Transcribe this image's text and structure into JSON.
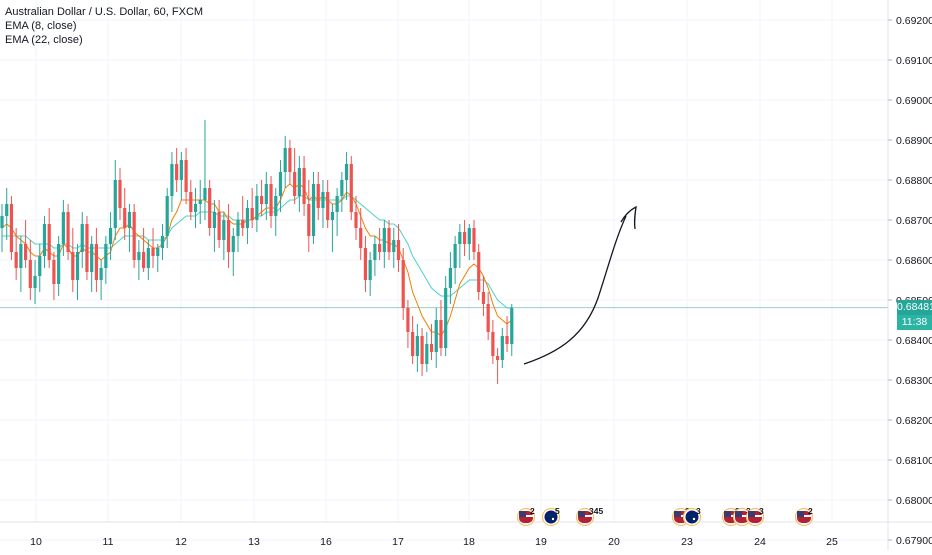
{
  "legend": {
    "symbol": "Australian Dollar / U.S. Dollar, 60, FXCM",
    "ema8": "EMA (8, close)",
    "ema22": "EMA (22, close)"
  },
  "price_badge": {
    "price": "0.68481",
    "countdown": "11:38"
  },
  "colors": {
    "up": "#26a69a",
    "down": "#ef5350",
    "ema8": "#f57c00",
    "ema22": "#4dd0c8",
    "last_line": "#26a69a",
    "grid": "#f0f3fa",
    "axis_text": "#131722"
  },
  "chart_data": {
    "type": "candlestick",
    "title": "Australian Dollar / U.S. Dollar, 60, FXCM",
    "ylim": [
      0.6792,
      0.6925
    ],
    "y_ticks": [
      "0.67900",
      "0.68000",
      "0.68100",
      "0.68200",
      "0.68300",
      "0.68400",
      "0.68500",
      "0.68600",
      "0.68700",
      "0.68800",
      "0.68900",
      "0.69000",
      "0.69100",
      "0.69200"
    ],
    "x_ticks": [
      "10",
      "11",
      "12",
      "13",
      "16",
      "17",
      "18",
      "19",
      "20",
      "23",
      "24",
      "25"
    ],
    "last_price": 0.68481,
    "series": [
      {
        "name": "EMA (8, close)",
        "type": "line"
      },
      {
        "name": "EMA (22, close)",
        "type": "line"
      }
    ],
    "candles": [
      [
        0.6868,
        0.6874,
        0.6862,
        0.6871
      ],
      [
        0.6871,
        0.6878,
        0.6865,
        0.6874
      ],
      [
        0.6874,
        0.6876,
        0.686,
        0.6862
      ],
      [
        0.6862,
        0.6868,
        0.6855,
        0.6858
      ],
      [
        0.6858,
        0.6866,
        0.6852,
        0.6864
      ],
      [
        0.6864,
        0.687,
        0.6858,
        0.686
      ],
      [
        0.686,
        0.6865,
        0.685,
        0.6853
      ],
      [
        0.6853,
        0.686,
        0.6849,
        0.6856
      ],
      [
        0.6856,
        0.6864,
        0.6852,
        0.6861
      ],
      [
        0.6861,
        0.6871,
        0.6858,
        0.6869
      ],
      [
        0.6869,
        0.6873,
        0.6858,
        0.686
      ],
      [
        0.686,
        0.6862,
        0.685,
        0.6854
      ],
      [
        0.6854,
        0.6866,
        0.6851,
        0.6864
      ],
      [
        0.6864,
        0.6875,
        0.6861,
        0.6872
      ],
      [
        0.6872,
        0.6874,
        0.686,
        0.6862
      ],
      [
        0.6862,
        0.6868,
        0.6852,
        0.6855
      ],
      [
        0.6855,
        0.6864,
        0.685,
        0.6862
      ],
      [
        0.6862,
        0.6872,
        0.6858,
        0.6869
      ],
      [
        0.6869,
        0.6871,
        0.6855,
        0.6857
      ],
      [
        0.6857,
        0.6866,
        0.6852,
        0.6864
      ],
      [
        0.6864,
        0.6868,
        0.6852,
        0.6855
      ],
      [
        0.6855,
        0.686,
        0.685,
        0.6858
      ],
      [
        0.6858,
        0.6866,
        0.6854,
        0.6864
      ],
      [
        0.6864,
        0.6872,
        0.686,
        0.6868
      ],
      [
        0.6868,
        0.6885,
        0.6865,
        0.688
      ],
      [
        0.688,
        0.6883,
        0.687,
        0.6873
      ],
      [
        0.6873,
        0.6878,
        0.6865,
        0.6868
      ],
      [
        0.6868,
        0.6874,
        0.6862,
        0.6872
      ],
      [
        0.6872,
        0.6874,
        0.6858,
        0.686
      ],
      [
        0.686,
        0.6865,
        0.6855,
        0.6862
      ],
      [
        0.6862,
        0.6868,
        0.6857,
        0.6858
      ],
      [
        0.6858,
        0.6865,
        0.6855,
        0.6863
      ],
      [
        0.6863,
        0.6868,
        0.6858,
        0.6861
      ],
      [
        0.6861,
        0.6864,
        0.6857,
        0.6863
      ],
      [
        0.6863,
        0.6869,
        0.686,
        0.6866
      ],
      [
        0.6866,
        0.6878,
        0.6863,
        0.6876
      ],
      [
        0.6876,
        0.6887,
        0.6872,
        0.6884
      ],
      [
        0.6884,
        0.6888,
        0.6877,
        0.688
      ],
      [
        0.688,
        0.6887,
        0.6875,
        0.6885
      ],
      [
        0.6885,
        0.6888,
        0.6874,
        0.6877
      ],
      [
        0.6877,
        0.688,
        0.687,
        0.6872
      ],
      [
        0.6872,
        0.6878,
        0.6868,
        0.6874
      ],
      [
        0.6874,
        0.688,
        0.6869,
        0.6875
      ],
      [
        0.6875,
        0.6895,
        0.687,
        0.6878
      ],
      [
        0.6878,
        0.688,
        0.6866,
        0.6868
      ],
      [
        0.6868,
        0.6875,
        0.6862,
        0.6872
      ],
      [
        0.6872,
        0.6875,
        0.6863,
        0.6865
      ],
      [
        0.6865,
        0.6872,
        0.686,
        0.687
      ],
      [
        0.687,
        0.6874,
        0.6858,
        0.6862
      ],
      [
        0.6862,
        0.6868,
        0.6856,
        0.6866
      ],
      [
        0.6866,
        0.6872,
        0.6862,
        0.687
      ],
      [
        0.687,
        0.6876,
        0.6866,
        0.6868
      ],
      [
        0.6868,
        0.6875,
        0.6864,
        0.6873
      ],
      [
        0.6873,
        0.6878,
        0.6868,
        0.687
      ],
      [
        0.687,
        0.6879,
        0.6867,
        0.6876
      ],
      [
        0.6876,
        0.688,
        0.6871,
        0.6874
      ],
      [
        0.6874,
        0.6882,
        0.687,
        0.6879
      ],
      [
        0.6879,
        0.6881,
        0.6868,
        0.6871
      ],
      [
        0.6871,
        0.6878,
        0.6866,
        0.6876
      ],
      [
        0.6876,
        0.6885,
        0.6872,
        0.6882
      ],
      [
        0.6882,
        0.6891,
        0.6878,
        0.6888
      ],
      [
        0.6888,
        0.689,
        0.6879,
        0.6882
      ],
      [
        0.6882,
        0.6888,
        0.6874,
        0.6876
      ],
      [
        0.6876,
        0.6886,
        0.6872,
        0.6883
      ],
      [
        0.6883,
        0.6886,
        0.6871,
        0.6874
      ],
      [
        0.6874,
        0.688,
        0.6862,
        0.6866
      ],
      [
        0.6866,
        0.6882,
        0.6864,
        0.6879
      ],
      [
        0.6879,
        0.6882,
        0.687,
        0.6873
      ],
      [
        0.6873,
        0.688,
        0.6868,
        0.6877
      ],
      [
        0.6877,
        0.688,
        0.6868,
        0.687
      ],
      [
        0.687,
        0.6874,
        0.6862,
        0.6872
      ],
      [
        0.6872,
        0.6878,
        0.6866,
        0.6876
      ],
      [
        0.6876,
        0.6882,
        0.6872,
        0.688
      ],
      [
        0.688,
        0.6887,
        0.6875,
        0.6884
      ],
      [
        0.6884,
        0.6886,
        0.687,
        0.6872
      ],
      [
        0.6872,
        0.6876,
        0.6865,
        0.6868
      ],
      [
        0.6868,
        0.6873,
        0.686,
        0.6863
      ],
      [
        0.6863,
        0.6866,
        0.6852,
        0.6855
      ],
      [
        0.6855,
        0.6862,
        0.6851,
        0.686
      ],
      [
        0.686,
        0.6866,
        0.6856,
        0.6864
      ],
      [
        0.6864,
        0.6868,
        0.686,
        0.6862
      ],
      [
        0.6862,
        0.687,
        0.6858,
        0.6868
      ],
      [
        0.6868,
        0.687,
        0.686,
        0.6862
      ],
      [
        0.6862,
        0.6868,
        0.6858,
        0.6865
      ],
      [
        0.6865,
        0.6869,
        0.6857,
        0.686
      ],
      [
        0.686,
        0.6863,
        0.6845,
        0.6848
      ],
      [
        0.6848,
        0.685,
        0.6838,
        0.6842
      ],
      [
        0.6842,
        0.6846,
        0.6834,
        0.6836
      ],
      [
        0.6836,
        0.6844,
        0.6832,
        0.6841
      ],
      [
        0.6841,
        0.6843,
        0.6831,
        0.6834
      ],
      [
        0.6834,
        0.6842,
        0.6832,
        0.6839
      ],
      [
        0.6839,
        0.6844,
        0.6835,
        0.6837
      ],
      [
        0.6837,
        0.6848,
        0.6833,
        0.6845
      ],
      [
        0.6845,
        0.685,
        0.6836,
        0.6838
      ],
      [
        0.6838,
        0.6856,
        0.6836,
        0.6853
      ],
      [
        0.6853,
        0.6862,
        0.6849,
        0.6858
      ],
      [
        0.6858,
        0.6866,
        0.6854,
        0.6864
      ],
      [
        0.6864,
        0.6869,
        0.6858,
        0.6867
      ],
      [
        0.6867,
        0.687,
        0.6861,
        0.6864
      ],
      [
        0.6864,
        0.6869,
        0.686,
        0.6868
      ],
      [
        0.6868,
        0.687,
        0.686,
        0.6862
      ],
      [
        0.6862,
        0.6864,
        0.685,
        0.6852
      ],
      [
        0.6852,
        0.6856,
        0.6846,
        0.6849
      ],
      [
        0.6849,
        0.6852,
        0.684,
        0.6842
      ],
      [
        0.6842,
        0.6845,
        0.6834,
        0.6836
      ],
      [
        0.6836,
        0.6838,
        0.6829,
        0.6835
      ],
      [
        0.6835,
        0.6843,
        0.6833,
        0.6841
      ],
      [
        0.6841,
        0.6846,
        0.6837,
        0.6839
      ],
      [
        0.6839,
        0.6849,
        0.6836,
        0.6848
      ]
    ],
    "ema8": [
      0.6868,
      0.6869,
      0.6868,
      0.6866,
      0.6865,
      0.6864,
      0.6862,
      0.6861,
      0.6861,
      0.6863,
      0.6862,
      0.6861,
      0.6861,
      0.6864,
      0.6863,
      0.6861,
      0.6861,
      0.6863,
      0.6862,
      0.6862,
      0.6861,
      0.686,
      0.6861,
      0.6862,
      0.6866,
      0.6868,
      0.6868,
      0.6869,
      0.6867,
      0.6866,
      0.6865,
      0.6864,
      0.6863,
      0.6863,
      0.6864,
      0.6866,
      0.687,
      0.6872,
      0.6875,
      0.6875,
      0.6875,
      0.6875,
      0.6875,
      0.6875,
      0.6874,
      0.6874,
      0.6872,
      0.6872,
      0.687,
      0.6869,
      0.6869,
      0.6869,
      0.687,
      0.687,
      0.6871,
      0.6872,
      0.6873,
      0.6873,
      0.6873,
      0.6875,
      0.6878,
      0.6879,
      0.6878,
      0.6879,
      0.6878,
      0.6875,
      0.6876,
      0.6875,
      0.6876,
      0.6875,
      0.6874,
      0.6874,
      0.6875,
      0.6877,
      0.6876,
      0.6874,
      0.6871,
      0.6868,
      0.6866,
      0.6866,
      0.6865,
      0.6865,
      0.6864,
      0.6864,
      0.6863,
      0.686,
      0.6857,
      0.6852,
      0.6849,
      0.6846,
      0.6844,
      0.6842,
      0.6842,
      0.6841,
      0.6843,
      0.6846,
      0.685,
      0.6854,
      0.6856,
      0.6858,
      0.6859,
      0.6858,
      0.6856,
      0.6853,
      0.6849,
      0.6846,
      0.6845,
      0.6844,
      0.6845
    ],
    "ema22": [
      0.6866,
      0.6866,
      0.6866,
      0.6866,
      0.6866,
      0.6866,
      0.6865,
      0.6864,
      0.6864,
      0.6864,
      0.6864,
      0.6863,
      0.6863,
      0.6864,
      0.6864,
      0.6863,
      0.6863,
      0.6864,
      0.6863,
      0.6863,
      0.6863,
      0.6863,
      0.6863,
      0.6863,
      0.6864,
      0.6865,
      0.6866,
      0.6866,
      0.6866,
      0.6866,
      0.6866,
      0.6865,
      0.6865,
      0.6865,
      0.6865,
      0.6866,
      0.6868,
      0.6869,
      0.687,
      0.6871,
      0.6871,
      0.6871,
      0.6872,
      0.6872,
      0.6872,
      0.6872,
      0.6871,
      0.6871,
      0.6871,
      0.687,
      0.687,
      0.687,
      0.687,
      0.687,
      0.6871,
      0.6871,
      0.6872,
      0.6872,
      0.6872,
      0.6873,
      0.6874,
      0.6875,
      0.6875,
      0.6876,
      0.6876,
      0.6875,
      0.6875,
      0.6875,
      0.6875,
      0.6875,
      0.6875,
      0.6875,
      0.6875,
      0.6876,
      0.6876,
      0.6875,
      0.6874,
      0.6873,
      0.6872,
      0.6871,
      0.687,
      0.687,
      0.6869,
      0.6869,
      0.6868,
      0.6866,
      0.6864,
      0.6861,
      0.6859,
      0.6857,
      0.6855,
      0.6853,
      0.6852,
      0.6851,
      0.6851,
      0.6851,
      0.6852,
      0.6853,
      0.6854,
      0.6855,
      0.6855,
      0.6855,
      0.6855,
      0.6854,
      0.6852,
      0.685,
      0.6849,
      0.6848,
      0.6848
    ]
  },
  "event_markers": [
    {
      "flag": "us",
      "count": "2"
    },
    {
      "flag": "au",
      "count": "5"
    },
    {
      "flag": "us",
      "count": "345"
    },
    {
      "flag": "us",
      "count": "3"
    },
    {
      "flag": "au",
      "count": "3"
    },
    {
      "flag": "us",
      "count": "3"
    },
    {
      "flag": "us",
      "count": "3"
    },
    {
      "flag": "us",
      "count": "3"
    },
    {
      "flag": "us",
      "count": "2"
    }
  ]
}
